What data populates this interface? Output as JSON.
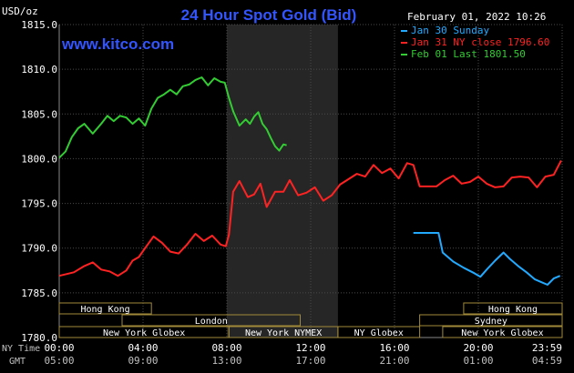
{
  "chart_data": {
    "type": "line",
    "title": "24 Hour Spot Gold (Bid)",
    "watermark": "www.kitco.com",
    "timestamp": "February 01, 2022 10:26",
    "y_unit": "USD/oz",
    "ylim": [
      1780,
      1815
    ],
    "y_ticks": [
      "1815.0",
      "1810.0",
      "1805.0",
      "1800.0",
      "1795.0",
      "1790.0",
      "1785.0",
      "1780.0"
    ],
    "x_row_labels": [
      "NY Time",
      "GMT"
    ],
    "x_ticks_ny": [
      "00:00",
      "04:00",
      "08:00",
      "12:00",
      "16:00",
      "20:00",
      "23:59"
    ],
    "x_ticks_gmt": [
      "05:00",
      "09:00",
      "13:00",
      "17:00",
      "21:00",
      "01:00",
      "04:59"
    ],
    "xlim_hours": [
      0,
      24
    ],
    "grid": true,
    "legend_position": "top-right",
    "shaded_band_hours": [
      8,
      13.3
    ],
    "market_rows": [
      [
        {
          "label": "Hong Kong",
          "start": 0,
          "end": 4.4
        },
        {
          "label": "Hong Kong",
          "start": 19.3,
          "end": 24
        }
      ],
      [
        {
          "label": "London",
          "start": 3,
          "end": 11.5
        },
        {
          "label": "Sydney",
          "start": 17.2,
          "end": 24
        }
      ],
      [
        {
          "label": "New York Globex",
          "start": 0,
          "end": 8.1
        },
        {
          "label": "New York NYMEX",
          "start": 8.1,
          "end": 13.3
        },
        {
          "label": "NY Globex",
          "start": 13.3,
          "end": 17.2
        },
        {
          "label": "New York Globex",
          "start": 18.3,
          "end": 24
        }
      ]
    ],
    "series": [
      {
        "name": "Jan 30 Sunday",
        "color": "#22aaff",
        "x": [
          16.9,
          18.1,
          18.3,
          18.8,
          19.3,
          19.8,
          20.1,
          20.4,
          20.8,
          21.2,
          21.5,
          21.9,
          22.3,
          22.7,
          23.0,
          23.3,
          23.6,
          23.9
        ],
        "y": [
          1791.7,
          1791.7,
          1789.5,
          1788.5,
          1787.8,
          1787.2,
          1786.8,
          1787.6,
          1788.6,
          1789.5,
          1788.8,
          1788.0,
          1787.3,
          1786.5,
          1786.2,
          1785.9,
          1786.6,
          1786.9
        ]
      },
      {
        "name": "Jan 31 NY close 1796.60",
        "color": "#ff2222",
        "x": [
          0.0,
          0.7,
          1.2,
          1.6,
          2.0,
          2.4,
          2.8,
          3.2,
          3.5,
          3.8,
          4.1,
          4.5,
          4.9,
          5.3,
          5.7,
          6.1,
          6.5,
          6.9,
          7.3,
          7.7,
          7.95,
          8.1,
          8.3,
          8.6,
          9.0,
          9.3,
          9.6,
          9.9,
          10.3,
          10.7,
          11.0,
          11.4,
          11.8,
          12.2,
          12.6,
          13.0,
          13.4,
          13.8,
          14.2,
          14.6,
          15.0,
          15.4,
          15.8,
          16.2,
          16.6,
          16.9,
          17.2,
          17.6,
          18.0,
          18.4,
          18.8,
          19.2,
          19.6,
          20.0,
          20.4,
          20.8,
          21.2,
          21.6,
          22.0,
          22.4,
          22.8,
          23.2,
          23.6,
          23.95
        ],
        "y": [
          1786.9,
          1787.3,
          1788.0,
          1788.4,
          1787.6,
          1787.4,
          1786.9,
          1787.5,
          1788.6,
          1789.0,
          1790.0,
          1791.3,
          1790.6,
          1789.6,
          1789.4,
          1790.4,
          1791.6,
          1790.8,
          1791.4,
          1790.4,
          1790.2,
          1791.5,
          1796.3,
          1797.5,
          1795.7,
          1796.0,
          1797.2,
          1794.6,
          1796.3,
          1796.3,
          1797.6,
          1795.9,
          1796.2,
          1796.8,
          1795.3,
          1795.9,
          1797.1,
          1797.7,
          1798.3,
          1798.0,
          1799.3,
          1798.4,
          1798.9,
          1797.8,
          1799.5,
          1799.3,
          1796.9,
          1796.9,
          1796.9,
          1797.6,
          1798.1,
          1797.2,
          1797.4,
          1798.0,
          1797.2,
          1796.8,
          1796.9,
          1797.9,
          1798.0,
          1797.9,
          1796.8,
          1798.0,
          1798.2,
          1799.8
        ]
      },
      {
        "name": "Feb 01 Last 1801.50",
        "color": "#33cc33",
        "x": [
          0.0,
          0.3,
          0.6,
          0.9,
          1.2,
          1.6,
          2.0,
          2.3,
          2.6,
          2.9,
          3.2,
          3.5,
          3.8,
          4.1,
          4.4,
          4.7,
          5.0,
          5.3,
          5.6,
          5.9,
          6.2,
          6.5,
          6.8,
          7.1,
          7.4,
          7.7,
          7.9,
          8.1,
          8.3,
          8.6,
          8.9,
          9.1,
          9.3,
          9.5,
          9.7,
          9.9,
          10.1,
          10.3,
          10.5,
          10.7,
          10.85
        ],
        "y": [
          1800.1,
          1800.8,
          1802.4,
          1803.4,
          1803.9,
          1802.8,
          1803.9,
          1804.8,
          1804.2,
          1804.8,
          1804.6,
          1803.9,
          1804.5,
          1803.7,
          1805.6,
          1806.8,
          1807.2,
          1807.7,
          1807.2,
          1808.1,
          1808.3,
          1808.8,
          1809.1,
          1808.2,
          1809.0,
          1808.6,
          1808.5,
          1806.8,
          1805.3,
          1803.7,
          1804.4,
          1803.9,
          1804.7,
          1805.2,
          1803.9,
          1803.3,
          1802.3,
          1801.4,
          1800.9,
          1801.6,
          1801.5
        ]
      }
    ],
    "colors": {
      "background": "#000000",
      "grid": "#4a4a4a",
      "shade": "#262626",
      "axis_text": "#ffffff",
      "title": "#3355ff",
      "watermark": "#3355ff",
      "market_label": "#ffffff",
      "market_box": "#a08a3a",
      "tick": "#c0c0c0"
    }
  }
}
